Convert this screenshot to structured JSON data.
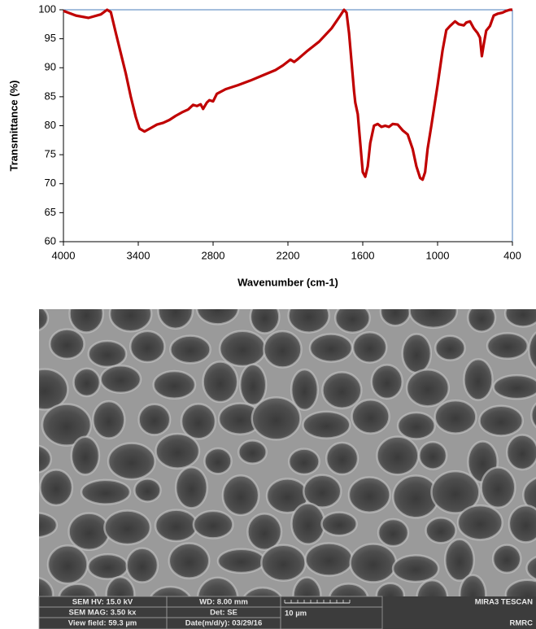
{
  "chart_data": {
    "type": "line",
    "xlabel": "Wavenumber (cm-1)",
    "ylabel": "Transmittance (%)",
    "x": [
      4000,
      3900,
      3800,
      3700,
      3650,
      3620,
      3580,
      3540,
      3500,
      3460,
      3420,
      3390,
      3350,
      3300,
      3250,
      3200,
      3150,
      3100,
      3050,
      3000,
      2960,
      2930,
      2900,
      2880,
      2850,
      2830,
      2800,
      2770,
      2700,
      2600,
      2500,
      2400,
      2300,
      2240,
      2180,
      2150,
      2120,
      2050,
      1950,
      1850,
      1780,
      1750,
      1730,
      1710,
      1690,
      1670,
      1660,
      1640,
      1620,
      1600,
      1580,
      1560,
      1540,
      1510,
      1480,
      1450,
      1420,
      1390,
      1360,
      1320,
      1280,
      1240,
      1200,
      1170,
      1140,
      1120,
      1100,
      1080,
      1050,
      1000,
      960,
      930,
      900,
      860,
      830,
      790,
      770,
      740,
      710,
      680,
      660,
      645,
      630,
      610,
      580,
      550,
      520,
      480,
      450,
      420,
      400
    ],
    "values": [
      99.8,
      99.0,
      98.6,
      99.2,
      100,
      99.6,
      96,
      92.5,
      89,
      85,
      81.5,
      79.5,
      79.0,
      79.6,
      80.2,
      80.5,
      81,
      81.7,
      82.3,
      82.8,
      83.6,
      83.4,
      83.7,
      82.9,
      84.0,
      84.4,
      84.2,
      85.5,
      86.3,
      87.0,
      87.8,
      88.7,
      89.6,
      90.4,
      91.4,
      91.0,
      91.5,
      92.8,
      94.5,
      96.8,
      99.0,
      100,
      99.5,
      96,
      91,
      86,
      84,
      82,
      77,
      72,
      71.2,
      73,
      77,
      80,
      80.3,
      79.8,
      80.0,
      79.8,
      80.3,
      80.2,
      79.2,
      78.5,
      76,
      73,
      71,
      70.7,
      72,
      76,
      80,
      87,
      93,
      96.5,
      97.2,
      98,
      97.5,
      97.3,
      97.8,
      98,
      96.8,
      96,
      95.2,
      92.0,
      94,
      96.4,
      97.2,
      99.0,
      99.3,
      99.5,
      99.8,
      100,
      100
    ],
    "color": "#c00000",
    "xlim": [
      4000,
      400
    ],
    "ylim": [
      60,
      100
    ],
    "xticks": [
      4000,
      3400,
      2800,
      2200,
      1600,
      1000,
      400
    ],
    "yticks": [
      60,
      65,
      70,
      75,
      80,
      85,
      90,
      95,
      100
    ]
  },
  "sem_image": {
    "info": [
      [
        "SEM HV: 15.0 kV",
        "WD: 8.00 mm",
        "MIRA3 TESCAN"
      ],
      [
        "SEM MAG: 3.50 kx",
        "Det: SE",
        "10 µm"
      ],
      [
        "View field: 59.3 µm",
        "Date(m/d/y): 03/29/16",
        "RMRC"
      ]
    ]
  }
}
